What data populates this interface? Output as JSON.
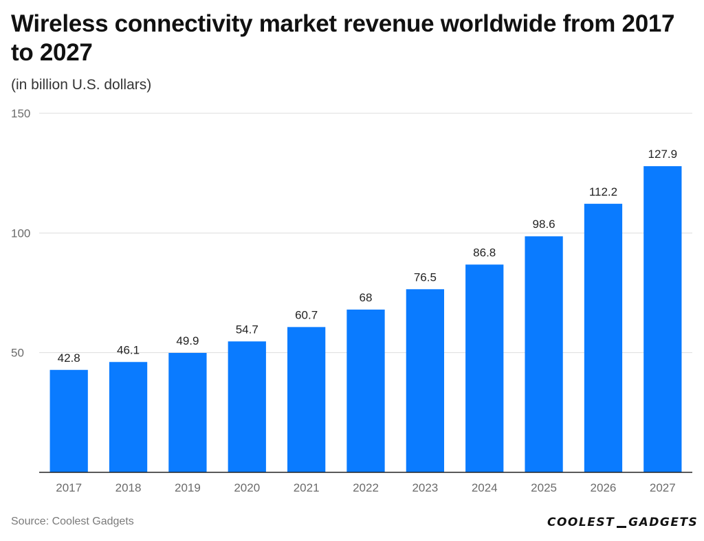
{
  "header": {
    "title": "Wireless connectivity market revenue worldwide from 2017 to 2027",
    "subtitle": "(in billion U.S. dollars)"
  },
  "footer": {
    "source": "Source: Coolest Gadgets",
    "logo_left": "COOLEST",
    "logo_right": "GADGETS"
  },
  "colors": {
    "bar": "#0a7bff",
    "grid": "#dddddd",
    "axis": "#222222"
  },
  "chart_data": {
    "type": "bar",
    "title": "Wireless connectivity market revenue worldwide from 2017 to 2027",
    "subtitle": "(in billion U.S. dollars)",
    "xlabel": "",
    "ylabel": "",
    "categories": [
      "2017",
      "2018",
      "2019",
      "2020",
      "2021",
      "2022",
      "2023",
      "2024",
      "2025",
      "2026",
      "2027"
    ],
    "values": [
      42.8,
      46.1,
      49.9,
      54.7,
      60.7,
      68,
      76.5,
      86.8,
      98.6,
      112.2,
      127.9
    ],
    "value_labels": [
      "42.8",
      "46.1",
      "49.9",
      "54.7",
      "60.7",
      "68",
      "76.5",
      "86.8",
      "98.6",
      "112.2",
      "127.9"
    ],
    "ylim": [
      0,
      150
    ],
    "yticks": [
      50,
      100,
      150
    ],
    "ytick_labels": [
      "50",
      "100",
      "150"
    ],
    "grid": true,
    "legend": "none"
  }
}
